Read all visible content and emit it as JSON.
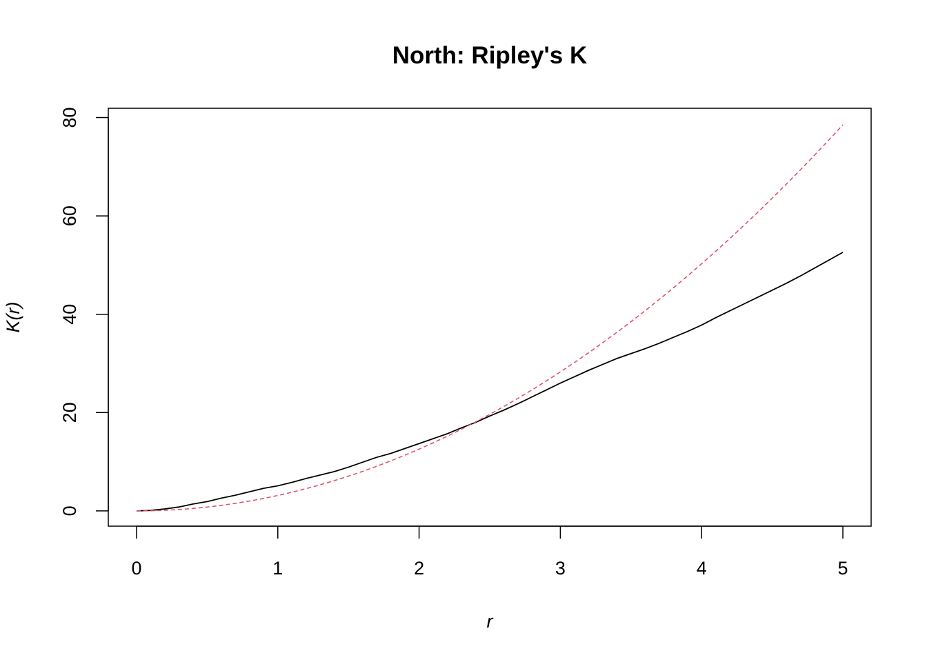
{
  "chart_data": {
    "type": "line",
    "title": "North: Ripley's K",
    "xlabel": "r",
    "ylabel": "K(r)",
    "xlim": [
      -0.2,
      5.2
    ],
    "ylim": [
      -3.1,
      81.9
    ],
    "x_ticks": [
      0,
      1,
      2,
      3,
      4,
      5
    ],
    "x_tick_labels": [
      "0",
      "1",
      "2",
      "3",
      "4",
      "5"
    ],
    "y_ticks": [
      0,
      20,
      40,
      60,
      80
    ],
    "y_tick_labels": [
      "0",
      "20",
      "40",
      "60",
      "80"
    ],
    "grid": false,
    "series": [
      {
        "color": "#000000",
        "dash": "solid",
        "x": [
          0,
          0.1,
          0.2,
          0.3,
          0.4,
          0.5,
          0.6,
          0.7,
          0.8,
          0.9,
          1.0,
          1.1,
          1.2,
          1.3,
          1.4,
          1.5,
          1.6,
          1.7,
          1.8,
          1.9,
          2.0,
          2.1,
          2.2,
          2.3,
          2.4,
          2.5,
          2.6,
          2.7,
          2.8,
          2.9,
          3.0,
          3.1,
          3.2,
          3.3,
          3.4,
          3.5,
          3.6,
          3.7,
          3.8,
          3.9,
          4.0,
          4.1,
          4.2,
          4.3,
          4.4,
          4.5,
          4.6,
          4.7,
          4.8,
          4.9,
          5.0
        ],
        "y": [
          0,
          0.1,
          0.4,
          0.8,
          1.4,
          1.9,
          2.6,
          3.2,
          3.9,
          4.6,
          5.1,
          5.8,
          6.6,
          7.3,
          8.0,
          8.9,
          9.9,
          10.9,
          11.7,
          12.7,
          13.7,
          14.7,
          15.7,
          16.9,
          18.0,
          19.3,
          20.5,
          21.8,
          23.2,
          24.6,
          26.0,
          27.3,
          28.6,
          29.8,
          31.0,
          32.0,
          33.0,
          34.1,
          35.3,
          36.5,
          37.8,
          39.3,
          40.7,
          42.1,
          43.5,
          44.9,
          46.3,
          47.8,
          49.4,
          51.0,
          52.6
        ]
      },
      {
        "color": "#df536b",
        "dash": "dashed",
        "x": [
          0,
          0.1,
          0.2,
          0.3,
          0.4,
          0.5,
          0.6,
          0.7,
          0.8,
          0.9,
          1.0,
          1.1,
          1.2,
          1.3,
          1.4,
          1.5,
          1.6,
          1.7,
          1.8,
          1.9,
          2.0,
          2.1,
          2.2,
          2.3,
          2.4,
          2.5,
          2.6,
          2.7,
          2.8,
          2.9,
          3.0,
          3.1,
          3.2,
          3.3,
          3.4,
          3.5,
          3.6,
          3.7,
          3.8,
          3.9,
          4.0,
          4.1,
          4.2,
          4.3,
          4.4,
          4.5,
          4.6,
          4.7,
          4.8,
          4.9,
          5.0
        ],
        "y": [
          0,
          0.03,
          0.13,
          0.28,
          0.5,
          0.79,
          1.13,
          1.54,
          2.01,
          2.54,
          3.14,
          3.8,
          4.52,
          5.31,
          6.16,
          7.07,
          8.04,
          9.08,
          10.18,
          11.34,
          12.57,
          13.85,
          15.21,
          16.62,
          18.1,
          19.63,
          21.24,
          22.9,
          24.63,
          26.42,
          28.27,
          30.19,
          32.17,
          34.21,
          36.32,
          38.48,
          40.72,
          43.01,
          45.36,
          47.78,
          50.27,
          52.81,
          55.42,
          58.09,
          60.82,
          63.62,
          66.48,
          69.4,
          72.38,
          75.43,
          78.54
        ]
      }
    ]
  }
}
